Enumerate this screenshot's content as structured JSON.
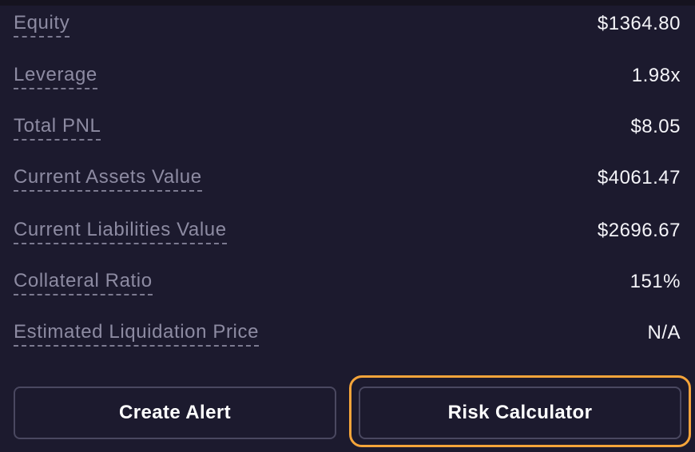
{
  "account_summary": {
    "rows": [
      {
        "label": "Equity",
        "value": "$1364.80"
      },
      {
        "label": "Leverage",
        "value": "1.98x"
      },
      {
        "label": "Total PNL",
        "value": "$8.05"
      },
      {
        "label": "Current Assets Value",
        "value": "$4061.47"
      },
      {
        "label": "Current Liabilities Value",
        "value": "$2696.67"
      },
      {
        "label": "Collateral Ratio",
        "value": "151%"
      },
      {
        "label": "Estimated Liquidation Price",
        "value": "N/A"
      }
    ]
  },
  "actions": {
    "create_alert_label": "Create Alert",
    "risk_calculator_label": "Risk Calculator"
  },
  "colors": {
    "background": "#1c1a2e",
    "label_text": "#8d8ba2",
    "value_text": "#f4f4f8",
    "button_border": "#4a4860",
    "focus_ring": "#f4a43a"
  }
}
